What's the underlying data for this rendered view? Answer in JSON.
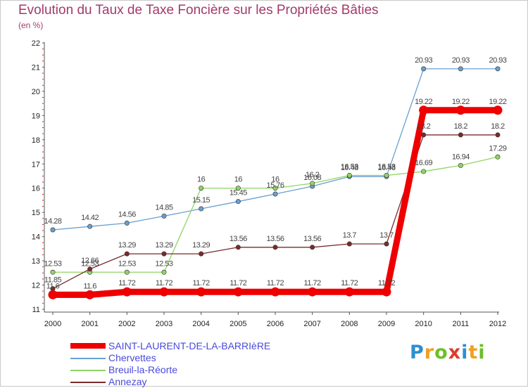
{
  "title": "Evolution du Taux de Taxe Foncière sur les Propriétés Bâties",
  "subtitle": "(en %)",
  "logo": {
    "text": "Proxiti",
    "letters": [
      {
        "ch": "P",
        "color": "#2c8fd1"
      },
      {
        "ch": "r",
        "color": "#f0a020"
      },
      {
        "ch": "o",
        "color": "#6cbf2a"
      },
      {
        "ch": "x",
        "color": "#e03a2c"
      },
      {
        "ch": "i",
        "color": "#2c8fd1"
      },
      {
        "ch": "t",
        "color": "#f0a020"
      },
      {
        "ch": "i",
        "color": "#6cbf2a"
      }
    ]
  },
  "chart_data": {
    "type": "line",
    "title": "Evolution du Taux de Taxe Foncière sur les Propriétés Bâties",
    "ylabel": "(en %)",
    "xlabel": "",
    "x": [
      "2000",
      "2001",
      "2002",
      "2003",
      "2004",
      "2005",
      "2006",
      "2007",
      "2008",
      "2009",
      "2010",
      "2011",
      "2012"
    ],
    "ylim": [
      11,
      22
    ],
    "yticks": [
      "11",
      "12",
      "13",
      "14",
      "15",
      "16",
      "17",
      "18",
      "19",
      "20",
      "21",
      "22"
    ],
    "grid": false,
    "legend_position": "bottom-left",
    "series": [
      {
        "name": "SAINT-LAURENT-DE-LA-BARRIèRE",
        "color": "#ee0000",
        "values": [
          11.6,
          11.6,
          11.72,
          11.72,
          11.72,
          11.72,
          11.72,
          11.72,
          11.72,
          11.72,
          19.22,
          19.22,
          19.22
        ],
        "labels": [
          "11.6",
          "11.6",
          "11.72",
          "11.72",
          "11.72",
          "11.72",
          "11.72",
          "11.72",
          "11.72",
          "11.72",
          "19.22",
          "19.22",
          "19.22"
        ]
      },
      {
        "name": "Chervettes",
        "color": "#6a9fd0",
        "values": [
          14.28,
          14.42,
          14.56,
          14.85,
          15.15,
          15.45,
          15.76,
          16.08,
          16.48,
          16.48,
          20.93,
          20.93,
          20.93
        ],
        "labels": [
          "14.28",
          "14.42",
          "14.56",
          "14.85",
          "15.15",
          "15.45",
          "15.76",
          "16.08",
          "16.48",
          "16.48",
          "20.93",
          "20.93",
          "20.93"
        ]
      },
      {
        "name": "Breuil-la-Réorte",
        "color": "#8fd466",
        "values": [
          12.53,
          12.53,
          12.53,
          12.53,
          16,
          16,
          16,
          16.2,
          16.53,
          16.53,
          16.69,
          16.94,
          17.29
        ],
        "labels": [
          "12.53",
          "12.53",
          "12.53",
          "12.53",
          "16",
          "16",
          "16",
          "16.2",
          "16.53",
          "16.53",
          "16.69",
          "16.94",
          "17.29"
        ]
      },
      {
        "name": "Annezay",
        "color": "#7a2a2a",
        "values": [
          11.85,
          12.66,
          13.29,
          13.29,
          13.29,
          13.56,
          13.56,
          13.56,
          13.7,
          13.7,
          18.2,
          18.2,
          18.2
        ],
        "labels": [
          "11.85",
          "12.66",
          "13.29",
          "13.29",
          "13.29",
          "13.56",
          "13.56",
          "13.56",
          "13.7",
          "13.7",
          "18.2",
          "18.2",
          "18.2"
        ]
      }
    ]
  }
}
